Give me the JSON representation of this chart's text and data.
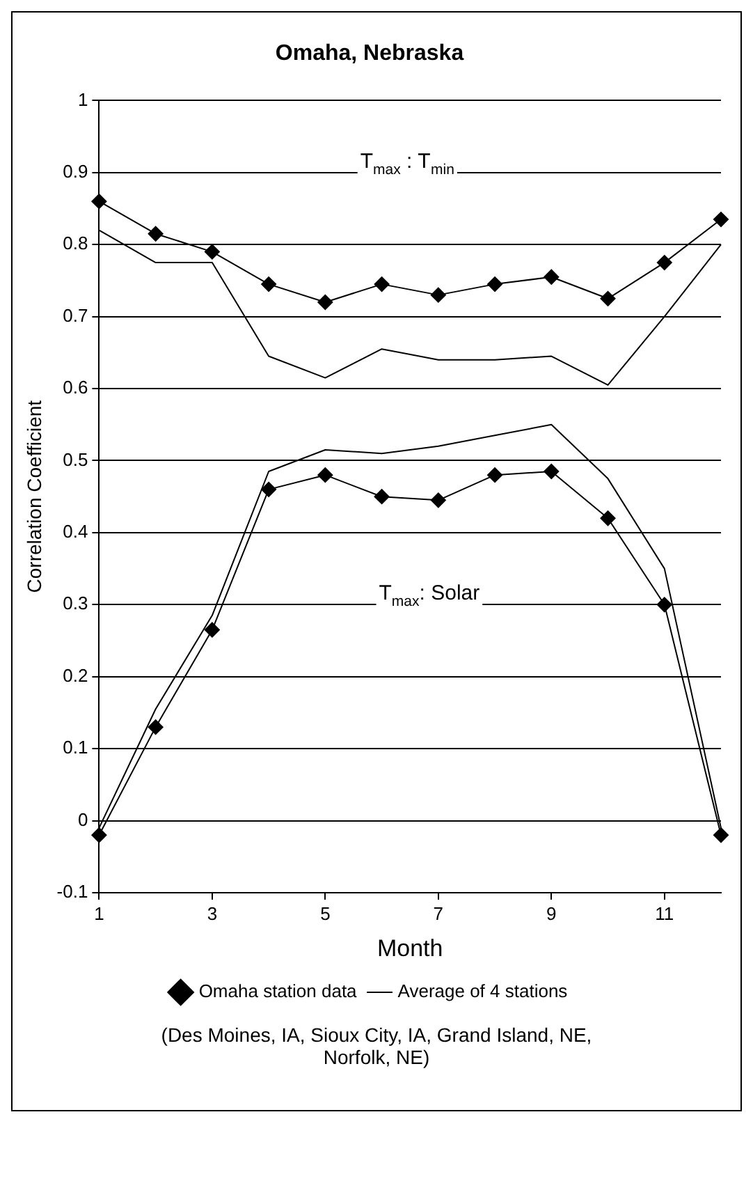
{
  "chart_data": {
    "type": "line",
    "title": "Omaha, Nebraska",
    "xlabel": "Month",
    "ylabel": "Correlation Coefficient",
    "x": [
      1,
      2,
      3,
      4,
      5,
      6,
      7,
      8,
      9,
      10,
      11,
      12
    ],
    "xlim": [
      1,
      12
    ],
    "xticks": [
      1,
      3,
      5,
      7,
      9,
      11
    ],
    "ylim": [
      -0.1,
      1
    ],
    "yticks": [
      -0.1,
      0,
      0.1,
      0.2,
      0.3,
      0.4,
      0.5,
      0.6,
      0.7,
      0.8,
      0.9,
      1
    ],
    "grid": "y",
    "legend": "bottom",
    "series": [
      {
        "name": "Omaha station data",
        "color": "#000000",
        "marker": "diamond",
        "values": [
          0.86,
          0.815,
          0.79,
          0.745,
          0.72,
          0.745,
          0.73,
          0.745,
          0.755,
          0.725,
          0.775,
          0.835
        ]
      },
      {
        "name": "Average of 4 stations",
        "color": "#000000",
        "marker": "none",
        "values": [
          0.82,
          0.775,
          0.775,
          0.645,
          0.615,
          0.655,
          0.64,
          0.64,
          0.645,
          0.605,
          0.7,
          0.8
        ]
      },
      {
        "color": "#000000",
        "marker": "diamond",
        "values": [
          -0.02,
          0.13,
          0.265,
          0.46,
          0.48,
          0.45,
          0.445,
          0.48,
          0.485,
          0.42,
          0.3,
          -0.02
        ]
      },
      {
        "color": "#000000",
        "marker": "none",
        "values": [
          -0.01,
          0.155,
          0.285,
          0.485,
          0.515,
          0.51,
          0.52,
          0.535,
          0.55,
          0.475,
          0.35,
          -0.01
        ]
      }
    ],
    "annotations": [
      "T$_{max}$ : T$_{min}$",
      "T$_{max}$: Solar",
      "(Des Moines, IA, Sioux City, IA, Grand Island, NE, Norfolk, NE)"
    ]
  }
}
